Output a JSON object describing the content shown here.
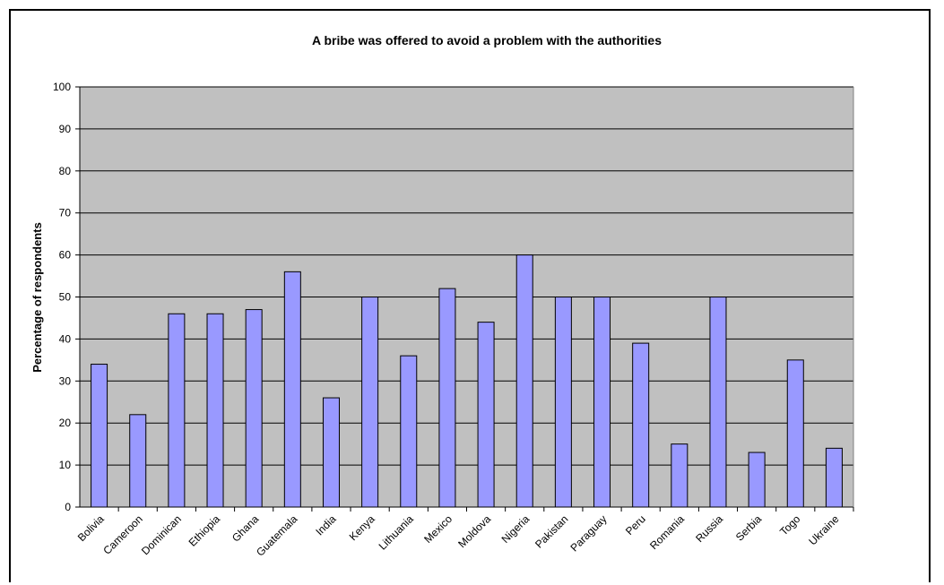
{
  "chart_data": {
    "type": "bar",
    "title": "A bribe was offered to avoid a problem with the authorities",
    "xlabel": "",
    "ylabel": "Percentage of respondents",
    "ylim": [
      0,
      100
    ],
    "yticks": [
      0,
      10,
      20,
      30,
      40,
      50,
      60,
      70,
      80,
      90,
      100
    ],
    "grid": true,
    "legend": "none",
    "categories": [
      "Bolivia",
      "Cameroon",
      "Dominican",
      "Ethiopia",
      "Ghana",
      "Guatemala",
      "India",
      "Kenya",
      "Lithuania",
      "Mexico",
      "Moldova",
      "Nigeria",
      "Pakistan",
      "Paraguay",
      "Peru",
      "Romania",
      "Russia",
      "Serbia",
      "Togo",
      "Ukraine"
    ],
    "values": [
      34,
      22,
      46,
      46,
      47,
      56,
      26,
      50,
      36,
      52,
      44,
      60,
      50,
      50,
      39,
      15,
      50,
      13,
      35,
      14
    ],
    "colors": {
      "bar_fill": "#9999ff",
      "bar_stroke": "#000000",
      "plot_background": "#c0c0c0",
      "gridline": "#000000"
    }
  }
}
